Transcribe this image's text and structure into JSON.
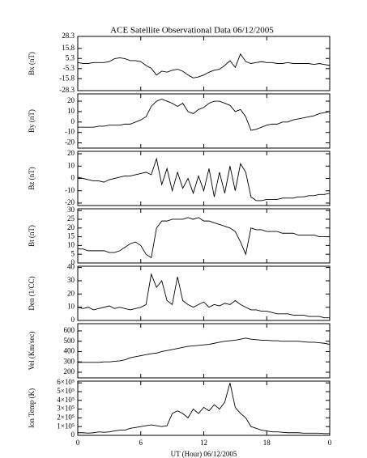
{
  "title": "ACE Satellite Observational Data   06/12/2005",
  "chart_data": [
    {
      "type": "line",
      "ylabel": "Bx (nT)",
      "color": "#000000",
      "x": [
        0,
        0.5,
        1,
        1.5,
        2,
        2.5,
        3,
        3.5,
        4,
        4.5,
        5,
        5.5,
        6,
        6.5,
        7,
        7.5,
        8,
        8.5,
        9,
        9.5,
        10,
        10.5,
        11,
        11.5,
        12,
        12.5,
        13,
        13.5,
        14,
        14.5,
        15,
        15.5,
        16,
        16.5,
        17,
        17.5,
        18,
        18.5,
        19,
        19.5,
        20,
        20.5,
        21,
        21.5,
        22,
        22.5,
        23,
        23.5,
        24
      ],
      "values": [
        1,
        0,
        0,
        1,
        1,
        1,
        2,
        5,
        6,
        5,
        3,
        3,
        2,
        -2,
        -5,
        -12,
        -8,
        -9,
        -7,
        -6,
        -8,
        -12,
        -15,
        -14,
        -12,
        -9,
        -7,
        -6,
        -2,
        3,
        -4,
        10,
        2,
        0,
        1,
        2,
        1,
        1,
        0,
        0,
        1,
        0,
        0,
        0,
        0,
        -1,
        0,
        -1,
        -2
      ],
      "xlim": [
        0,
        24
      ],
      "xticks": [
        0,
        6,
        12,
        18,
        {
          "value": 24,
          "label": "0"
        }
      ],
      "ylim": [
        -28.3,
        28.3
      ],
      "yticks": [
        28.3,
        15.8,
        5.3,
        -5.3,
        -15.8,
        -28.3
      ]
    },
    {
      "type": "line",
      "ylabel": "By (nT)",
      "color": "#000000",
      "x": [
        0,
        0.5,
        1,
        1.5,
        2,
        2.5,
        3,
        3.5,
        4,
        4.5,
        5,
        5.5,
        6,
        6.5,
        7,
        7.5,
        8,
        8.5,
        9,
        9.5,
        10,
        10.5,
        11,
        11.5,
        12,
        12.5,
        13,
        13.5,
        14,
        14.5,
        15,
        15.5,
        16,
        16.5,
        17,
        17.5,
        18,
        18.5,
        19,
        19.5,
        20,
        20.5,
        21,
        21.5,
        22,
        22.5,
        23,
        23.5,
        24
      ],
      "values": [
        -5,
        -5,
        -5,
        -5,
        -4,
        -4,
        -3,
        -3,
        -3,
        -2,
        -2,
        0,
        2,
        5,
        15,
        20,
        22,
        20,
        18,
        15,
        18,
        10,
        8,
        12,
        14,
        18,
        20,
        20,
        18,
        16,
        10,
        12,
        5,
        -8,
        -7,
        -5,
        -3,
        -2,
        -2,
        0,
        0,
        2,
        3,
        4,
        5,
        6,
        8,
        9,
        10
      ],
      "xlim": [
        0,
        24
      ],
      "xticks": [
        0,
        6,
        12,
        18,
        {
          "value": 24,
          "label": "0"
        }
      ],
      "ylim": [
        -25,
        27
      ],
      "yticks": [
        20,
        10,
        0,
        -10,
        -20
      ]
    },
    {
      "type": "line",
      "ylabel": "Bz (nT)",
      "color": "#000000",
      "x": [
        0,
        0.5,
        1,
        1.5,
        2,
        2.5,
        3,
        3.5,
        4,
        4.5,
        5,
        5.5,
        6,
        6.5,
        7,
        7.5,
        8,
        8.5,
        9,
        9.5,
        10,
        10.5,
        11,
        11.5,
        12,
        12.5,
        13,
        13.5,
        14,
        14.5,
        15,
        15.5,
        16,
        16.5,
        17,
        17.5,
        18,
        18.5,
        19,
        19.5,
        20,
        20.5,
        21,
        21.5,
        22,
        22.5,
        23,
        23.5,
        24
      ],
      "values": [
        1,
        0,
        -1,
        -2,
        -2,
        -3,
        -1,
        0,
        1,
        2,
        2,
        3,
        4,
        5,
        3,
        16,
        -5,
        8,
        -10,
        5,
        -8,
        0,
        -12,
        2,
        -10,
        8,
        -15,
        5,
        -12,
        10,
        -10,
        12,
        5,
        -15,
        -18,
        -18,
        -17,
        -17,
        -17,
        -16,
        -16,
        -16,
        -15,
        -15,
        -14,
        -14,
        -13,
        -13,
        -12
      ],
      "xlim": [
        0,
        24
      ],
      "xticks": [
        0,
        6,
        12,
        18,
        {
          "value": 24,
          "label": "0"
        }
      ],
      "ylim": [
        -22,
        22
      ],
      "yticks": [
        20,
        10,
        0,
        -10,
        -20
      ]
    },
    {
      "type": "line",
      "ylabel": "Bt (nT)",
      "color": "#000000",
      "x": [
        0,
        0.5,
        1,
        1.5,
        2,
        2.5,
        3,
        3.5,
        4,
        4.5,
        5,
        5.5,
        6,
        6.5,
        7,
        7.5,
        8,
        8.5,
        9,
        9.5,
        10,
        10.5,
        11,
        11.5,
        12,
        12.5,
        13,
        13.5,
        14,
        14.5,
        15,
        15.5,
        16,
        16.5,
        17,
        17.5,
        18,
        18.5,
        19,
        19.5,
        20,
        20.5,
        21,
        21.5,
        22,
        22.5,
        23,
        23.5,
        24
      ],
      "values": [
        8,
        8,
        7,
        7,
        7,
        7,
        6,
        6,
        7,
        9,
        11,
        12,
        10,
        5,
        3,
        20,
        24,
        24,
        25,
        25,
        25,
        26,
        25,
        26,
        24,
        24,
        23,
        22,
        21,
        20,
        18,
        12,
        5,
        20,
        19,
        19,
        18,
        18,
        18,
        17,
        17,
        17,
        16,
        16,
        16,
        16,
        15,
        15,
        15
      ],
      "xlim": [
        0,
        24
      ],
      "xticks": [
        0,
        6,
        12,
        18,
        {
          "value": 24,
          "label": "0"
        }
      ],
      "ylim": [
        0,
        31
      ],
      "yticks": [
        30,
        25,
        20,
        15,
        10,
        5,
        0
      ]
    },
    {
      "type": "line",
      "ylabel": "Den (1/CC)",
      "color": "#000000",
      "x": [
        0,
        0.5,
        1,
        1.5,
        2,
        2.5,
        3,
        3.5,
        4,
        4.5,
        5,
        5.5,
        6,
        6.5,
        7,
        7.5,
        8,
        8.5,
        9,
        9.5,
        10,
        10.5,
        11,
        11.5,
        12,
        12.5,
        13,
        13.5,
        14,
        14.5,
        15,
        15.5,
        16,
        16.5,
        17,
        17.5,
        18,
        18.5,
        19,
        19.5,
        20,
        20.5,
        21,
        21.5,
        22,
        22.5,
        23,
        23.5,
        24
      ],
      "values": [
        10,
        9,
        10,
        8,
        9,
        10,
        11,
        9,
        10,
        9,
        8,
        9,
        10,
        12,
        35,
        25,
        30,
        15,
        12,
        33,
        15,
        12,
        10,
        12,
        14,
        10,
        12,
        11,
        13,
        12,
        15,
        12,
        10,
        8,
        8,
        7,
        7,
        6,
        5,
        5,
        5,
        4,
        4,
        4,
        3,
        3,
        3,
        2,
        2
      ],
      "xlim": [
        0,
        24
      ],
      "xticks": [
        0,
        6,
        12,
        18,
        {
          "value": 24,
          "label": "0"
        }
      ],
      "ylim": [
        0,
        41
      ],
      "yticks": [
        40,
        30,
        20,
        10,
        0
      ]
    },
    {
      "type": "line",
      "ylabel": "Vel (Km/sec)",
      "color": "#000000",
      "x": [
        0,
        0.5,
        1,
        1.5,
        2,
        2.5,
        3,
        3.5,
        4,
        4.5,
        5,
        5.5,
        6,
        6.5,
        7,
        7.5,
        8,
        8.5,
        9,
        9.5,
        10,
        10.5,
        11,
        11.5,
        12,
        12.5,
        13,
        13.5,
        14,
        14.5,
        15,
        15.5,
        16,
        16.5,
        17,
        17.5,
        18,
        18.5,
        19,
        19.5,
        20,
        20.5,
        21,
        21.5,
        22,
        22.5,
        23,
        23.5,
        24
      ],
      "values": [
        295,
        295,
        295,
        295,
        295,
        300,
        300,
        305,
        310,
        320,
        340,
        350,
        360,
        370,
        380,
        385,
        400,
        410,
        420,
        430,
        440,
        450,
        455,
        460,
        465,
        470,
        480,
        490,
        500,
        505,
        510,
        520,
        530,
        520,
        515,
        510,
        510,
        505,
        505,
        500,
        500,
        500,
        500,
        495,
        490,
        490,
        485,
        480,
        470
      ],
      "xlim": [
        0,
        24
      ],
      "xticks": [
        0,
        6,
        12,
        18,
        {
          "value": 24,
          "label": "0"
        }
      ],
      "ylim": [
        145,
        670
      ],
      "yticks": [
        600,
        500,
        400,
        300,
        200
      ]
    },
    {
      "type": "line",
      "ylabel": "Ion Temp (K)",
      "xlabel": "UT (Hour)   06/12/2005",
      "color": "#000000",
      "x": [
        0,
        0.5,
        1,
        1.5,
        2,
        2.5,
        3,
        3.5,
        4,
        4.5,
        5,
        5.5,
        6,
        6.5,
        7,
        7.5,
        8,
        8.5,
        9,
        9.5,
        10,
        10.5,
        11,
        11.5,
        12,
        12.5,
        13,
        13.5,
        14,
        14.5,
        15,
        15.5,
        16,
        16.5,
        17,
        17.5,
        18,
        18.5,
        19,
        19.5,
        20,
        20.5,
        21,
        21.5,
        22,
        22.5,
        23,
        23.5,
        24
      ],
      "values": [
        30000,
        30000,
        25000,
        30000,
        40000,
        35000,
        40000,
        50000,
        60000,
        60000,
        80000,
        90000,
        100000,
        110000,
        120000,
        110000,
        100000,
        110000,
        250000,
        280000,
        250000,
        200000,
        300000,
        250000,
        320000,
        280000,
        350000,
        300000,
        380000,
        600000,
        320000,
        250000,
        200000,
        100000,
        80000,
        60000,
        50000,
        40000,
        40000,
        35000,
        30000,
        30000,
        30000,
        25000,
        25000,
        25000,
        25000,
        20000,
        20000
      ],
      "xlim": [
        0,
        24
      ],
      "xticks": [
        0,
        6,
        12,
        18,
        {
          "value": 24,
          "label": "0"
        }
      ],
      "ylim": [
        0,
        620000
      ],
      "yticks": [
        {
          "value": 600000,
          "label": "6×10⁵"
        },
        {
          "value": 500000,
          "label": "5×10⁵"
        },
        {
          "value": 400000,
          "label": "4×10⁵"
        },
        {
          "value": 300000,
          "label": "3×10⁵"
        },
        {
          "value": 200000,
          "label": "2×10⁵"
        },
        {
          "value": 100000,
          "label": "1×10⁵"
        },
        0
      ]
    }
  ]
}
